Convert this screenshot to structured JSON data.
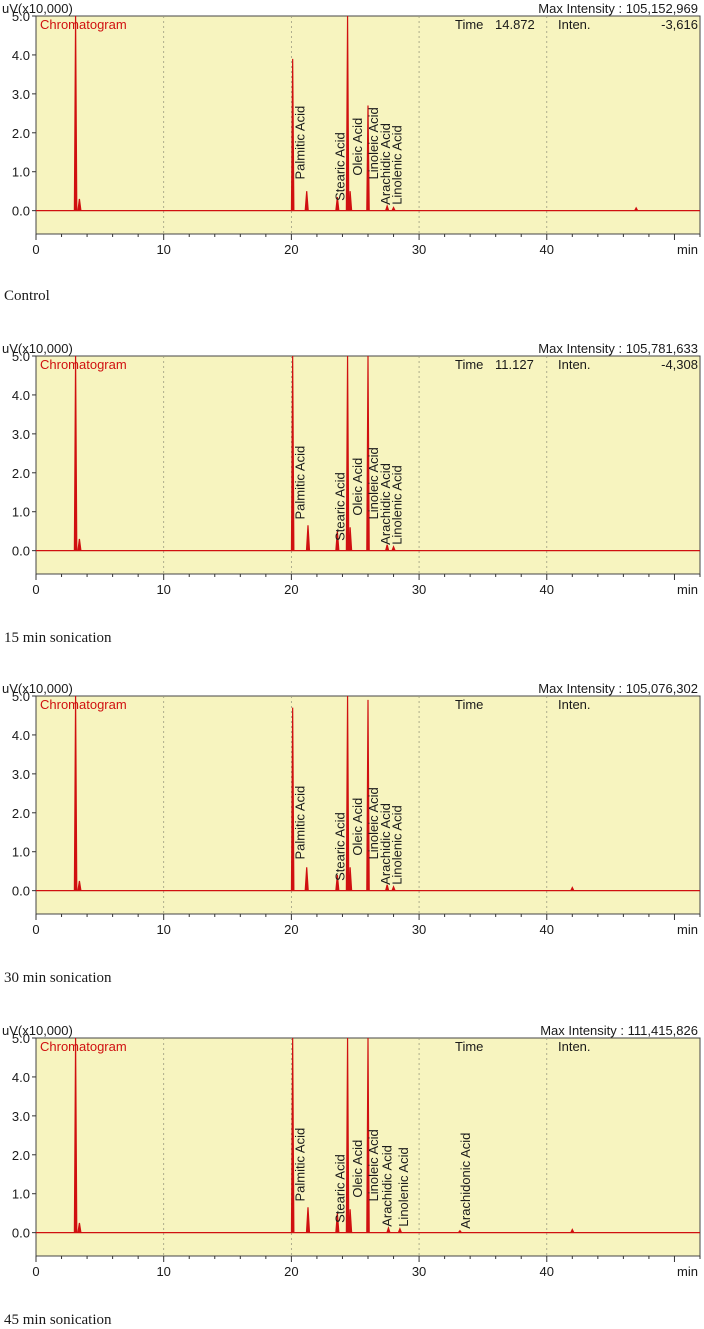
{
  "chart_data": [
    {
      "type": "line",
      "caption": "Control",
      "ylabel": "uV(x10,000)",
      "xlabel": "min",
      "legend": "Chromatogram",
      "max_intensity": "Max Intensity : 105,152,969",
      "time_label": "Time",
      "time_value": "14.872",
      "inten_label": "Inten.",
      "inten_value": "-3,616",
      "xlim": [
        0,
        52
      ],
      "ylim": [
        -0.6,
        5.0
      ],
      "x_ticks": [
        "0",
        "10",
        "20",
        "30",
        "40",
        "min"
      ],
      "y_ticks": [
        "5.0",
        "4.0",
        "3.0",
        "2.0",
        "1.0",
        "0.0"
      ],
      "peaks": [
        {
          "x": 3.1,
          "y": 5.0,
          "label": ""
        },
        {
          "x": 3.4,
          "y": 0.3,
          "label": ""
        },
        {
          "x": 20.1,
          "y": 3.9,
          "label": "Palmitic Acid"
        },
        {
          "x": 21.2,
          "y": 0.5,
          "label": ""
        },
        {
          "x": 23.6,
          "y": 0.35,
          "label": ""
        },
        {
          "x": 24.4,
          "y": 5.0,
          "label": "Stearic Acid"
        },
        {
          "x": 24.6,
          "y": 0.5,
          "label": "Oleic Acid"
        },
        {
          "x": 26.0,
          "y": 2.7,
          "label": "Linoleic Acid"
        },
        {
          "x": 27.5,
          "y": 0.12,
          "label": "Arachidic Acid"
        },
        {
          "x": 28.0,
          "y": 0.08,
          "label": "Linolenic Acid"
        },
        {
          "x": 47.0,
          "y": 0.07,
          "label": ""
        }
      ]
    },
    {
      "type": "line",
      "caption": "15 min sonication",
      "ylabel": "uV(x10,000)",
      "xlabel": "min",
      "legend": "Chromatogram",
      "max_intensity": "Max Intensity : 105,781,633",
      "time_label": "Time",
      "time_value": "11.127",
      "inten_label": "Inten.",
      "inten_value": "-4,308",
      "xlim": [
        0,
        52
      ],
      "ylim": [
        -0.6,
        5.0
      ],
      "x_ticks": [
        "0",
        "10",
        "20",
        "30",
        "40",
        "min"
      ],
      "y_ticks": [
        "5.0",
        "4.0",
        "3.0",
        "2.0",
        "1.0",
        "0.0"
      ],
      "peaks": [
        {
          "x": 3.1,
          "y": 5.0,
          "label": ""
        },
        {
          "x": 3.4,
          "y": 0.3,
          "label": ""
        },
        {
          "x": 20.1,
          "y": 5.0,
          "label": "Palmitic Acid"
        },
        {
          "x": 21.3,
          "y": 0.65,
          "label": ""
        },
        {
          "x": 23.6,
          "y": 0.5,
          "label": ""
        },
        {
          "x": 24.4,
          "y": 5.0,
          "label": "Stearic Acid"
        },
        {
          "x": 24.6,
          "y": 0.6,
          "label": "Oleic Acid"
        },
        {
          "x": 26.0,
          "y": 5.0,
          "label": "Linoleic Acid"
        },
        {
          "x": 27.5,
          "y": 0.15,
          "label": "Arachidic Acid"
        },
        {
          "x": 28.0,
          "y": 0.1,
          "label": "Linolenic Acid"
        }
      ]
    },
    {
      "type": "line",
      "caption": "30 min sonication",
      "ylabel": "uV(x10,000)",
      "xlabel": "min",
      "legend": "Chromatogram",
      "max_intensity": "Max Intensity : 105,076,302",
      "time_label": "Time",
      "time_value": "",
      "inten_label": "Inten.",
      "inten_value": "",
      "xlim": [
        0,
        52
      ],
      "ylim": [
        -0.6,
        5.0
      ],
      "x_ticks": [
        "0",
        "10",
        "20",
        "30",
        "40",
        "min"
      ],
      "y_ticks": [
        "5.0",
        "4.0",
        "3.0",
        "2.0",
        "1.0",
        "0.0"
      ],
      "peaks": [
        {
          "x": 3.1,
          "y": 5.0,
          "label": ""
        },
        {
          "x": 3.4,
          "y": 0.25,
          "label": ""
        },
        {
          "x": 20.1,
          "y": 4.7,
          "label": "Palmitic Acid"
        },
        {
          "x": 21.2,
          "y": 0.6,
          "label": ""
        },
        {
          "x": 23.6,
          "y": 0.4,
          "label": ""
        },
        {
          "x": 24.4,
          "y": 5.0,
          "label": "Stearic Acid"
        },
        {
          "x": 24.6,
          "y": 0.6,
          "label": "Oleic Acid"
        },
        {
          "x": 26.0,
          "y": 4.9,
          "label": "Linoleic Acid"
        },
        {
          "x": 27.5,
          "y": 0.15,
          "label": "Arachidic Acid"
        },
        {
          "x": 28.0,
          "y": 0.1,
          "label": "Linolenic Acid"
        },
        {
          "x": 42.0,
          "y": 0.08,
          "label": ""
        }
      ]
    },
    {
      "type": "line",
      "caption": "45 min sonication",
      "ylabel": "uV(x10,000)",
      "xlabel": "min",
      "legend": "Chromatogram",
      "max_intensity": "Max Intensity : 111,415,826",
      "time_label": "Time",
      "time_value": "",
      "inten_label": "Inten.",
      "inten_value": "",
      "xlim": [
        0,
        52
      ],
      "ylim": [
        -0.6,
        5.0
      ],
      "x_ticks": [
        "0",
        "10",
        "20",
        "30",
        "40",
        "min"
      ],
      "y_ticks": [
        "5.0",
        "4.0",
        "3.0",
        "2.0",
        "1.0",
        "0.0"
      ],
      "peaks": [
        {
          "x": 3.1,
          "y": 5.0,
          "label": ""
        },
        {
          "x": 3.4,
          "y": 0.25,
          "label": ""
        },
        {
          "x": 20.1,
          "y": 5.0,
          "label": "Palmitic Acid"
        },
        {
          "x": 21.3,
          "y": 0.65,
          "label": ""
        },
        {
          "x": 23.6,
          "y": 0.5,
          "label": ""
        },
        {
          "x": 24.4,
          "y": 5.0,
          "label": "Stearic Acid"
        },
        {
          "x": 24.6,
          "y": 0.6,
          "label": "Oleic Acid"
        },
        {
          "x": 26.0,
          "y": 5.0,
          "label": "Linoleic Acid"
        },
        {
          "x": 27.6,
          "y": 0.12,
          "label": "Arachidic Acid"
        },
        {
          "x": 28.5,
          "y": 0.1,
          "label": "Linolenic Acid"
        },
        {
          "x": 33.2,
          "y": 0.05,
          "label": "Arachidonic Acid"
        },
        {
          "x": 42.0,
          "y": 0.08,
          "label": ""
        }
      ]
    }
  ]
}
